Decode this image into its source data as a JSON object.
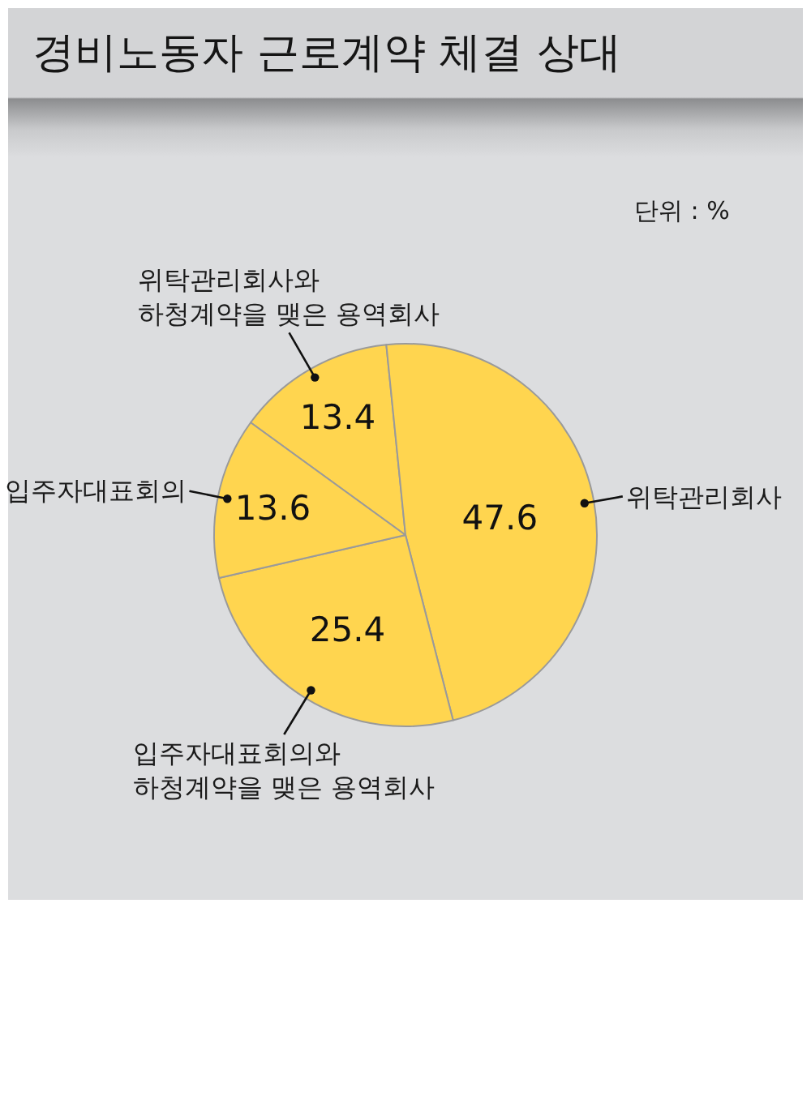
{
  "chart_data": {
    "type": "pie",
    "title": "경비노동자 근로계약 체결 상대",
    "categories": [
      "위탁관리회사와 하청계약을 맺은 용역회사",
      "위탁관리회사",
      "입주자대표회의와 하청계약을 맺은 용역회사",
      "입주자대표회의"
    ],
    "values": [
      13.4,
      47.6,
      25.4,
      13.6
    ],
    "colors": [
      "#ffd54f",
      "#ffd54f",
      "#ffd54f",
      "#ffd54f"
    ],
    "data_labels": true,
    "annotations": [
      "단위 : %"
    ]
  }
}
